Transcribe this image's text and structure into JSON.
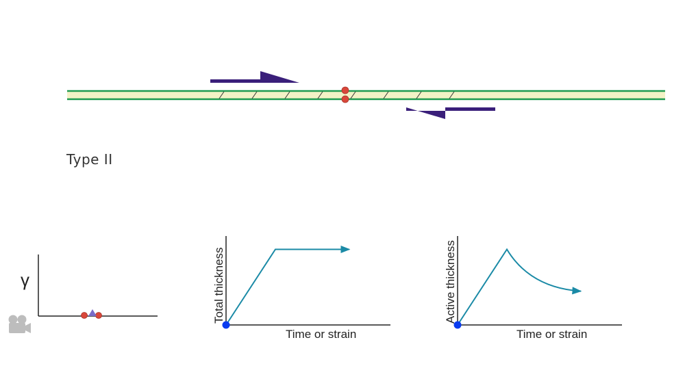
{
  "shear_zone": {
    "type_label": "Type II",
    "band_fill": "#f3f2c6",
    "band_edge": "#1f9a50",
    "arrow_color": "#3a1f7a",
    "particle_color": "#d9473a"
  },
  "gamma_plot": {
    "ylabel": "γ",
    "marker_color": "#7a6cc9"
  },
  "chart_data": [
    {
      "type": "line",
      "ylabel": "Total thickness",
      "xlabel": "Time or strain",
      "line_color": "#1a8aa6",
      "start_marker_color": "#0a3cf0",
      "series": [
        {
          "x": [
            0,
            3,
            7.5
          ],
          "y": [
            0,
            8.5,
            8.5
          ],
          "shape": "linear"
        }
      ],
      "xlim": [
        0,
        10
      ],
      "ylim": [
        0,
        10
      ]
    },
    {
      "type": "line",
      "ylabel": "Active thickness",
      "xlabel": "Time or strain",
      "line_color": "#1a8aa6",
      "start_marker_color": "#0a3cf0",
      "series": [
        {
          "x": [
            0,
            3,
            7.5
          ],
          "y": [
            0,
            8.5,
            3.8
          ],
          "shape": "linear-then-decay"
        }
      ],
      "xlim": [
        0,
        10
      ],
      "ylim": [
        0,
        10
      ]
    }
  ],
  "toolbar": {
    "movie_icon": "movie-camera-icon"
  }
}
